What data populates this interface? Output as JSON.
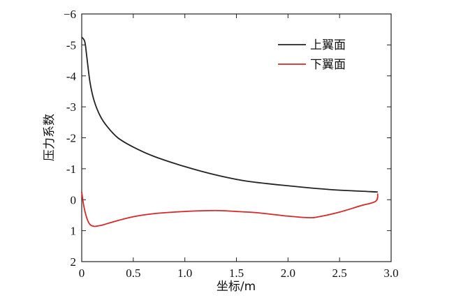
{
  "chart_data": {
    "type": "line",
    "xlabel": "坐标/m",
    "ylabel": "压力系数",
    "xlim": [
      0,
      3.0
    ],
    "ylim": [
      -6,
      2
    ],
    "y_inverted": true,
    "x_ticks": [
      0,
      0.5,
      1.0,
      1.5,
      2.0,
      2.5,
      3.0
    ],
    "x_tick_labels": [
      "0",
      "0.5",
      "1.0",
      "1.5",
      "2.0",
      "2.5",
      "3.0"
    ],
    "y_ticks": [
      -6,
      -5,
      -4,
      -3,
      -2,
      -1,
      0,
      1,
      2
    ],
    "y_tick_labels": [
      "−6",
      "-5",
      "-4",
      "-3",
      "-2",
      "-1",
      "0",
      "1",
      "2"
    ],
    "grid": false,
    "legend_position": "top-right",
    "series": [
      {
        "name": "上翼面",
        "color": "#222222",
        "x": [
          0.0,
          0.03,
          0.05,
          0.08,
          0.12,
          0.18,
          0.25,
          0.35,
          0.5,
          0.7,
          1.0,
          1.3,
          1.6,
          2.0,
          2.4,
          2.8,
          2.87
        ],
        "y": [
          -5.25,
          -5.1,
          -4.6,
          -3.8,
          -3.2,
          -2.7,
          -2.35,
          -2.0,
          -1.7,
          -1.4,
          -1.07,
          -0.8,
          -0.6,
          -0.45,
          -0.33,
          -0.26,
          -0.25
        ]
      },
      {
        "name": "下翼面",
        "color": "#d62728",
        "x": [
          2.87,
          2.85,
          2.7,
          2.5,
          2.3,
          2.2,
          2.0,
          1.7,
          1.5,
          1.3,
          1.0,
          0.7,
          0.5,
          0.3,
          0.2,
          0.15,
          0.12,
          0.08,
          0.05,
          0.02,
          0.0
        ],
        "y": [
          -0.2,
          0.05,
          0.2,
          0.4,
          0.55,
          0.58,
          0.53,
          0.42,
          0.38,
          0.35,
          0.38,
          0.45,
          0.55,
          0.72,
          0.82,
          0.85,
          0.86,
          0.8,
          0.6,
          0.2,
          -0.25
        ]
      }
    ]
  }
}
